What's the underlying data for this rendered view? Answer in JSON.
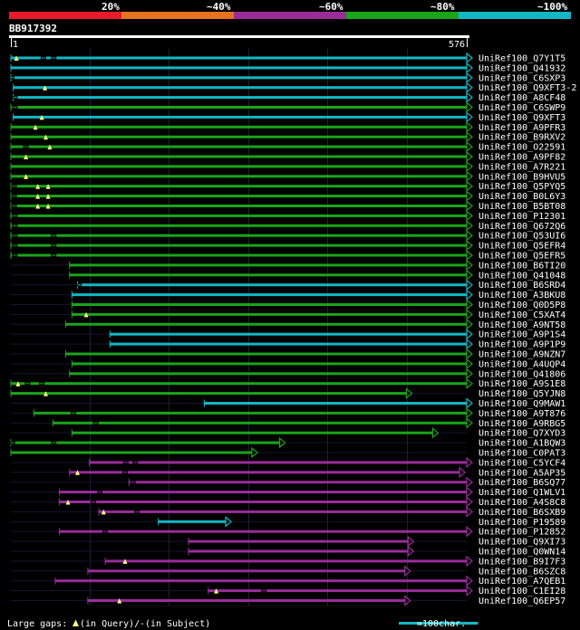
{
  "legend": {
    "labels": [
      "20%",
      "~40%",
      "~60%",
      "~80%",
      "~100%"
    ],
    "colors": [
      "#e8192c",
      "#e8731e",
      "#9a2c9a",
      "#1aa51a",
      "#11b8c4"
    ]
  },
  "query": {
    "name": "BB917392",
    "start": "1",
    "end": "576",
    "length": 576
  },
  "hits": [
    {
      "name": "UniRef100_Q7Y1T5",
      "start": 1,
      "end": 576,
      "color": "#11b8c4",
      "gaps": [
        {
          "pos": 8,
          "type": "query"
        },
        {
          "pos": 42,
          "type": "subject"
        },
        {
          "pos": 55,
          "type": "subject"
        }
      ]
    },
    {
      "name": "UniRef100_Q41932",
      "start": 1,
      "end": 576,
      "color": "#11b8c4",
      "gaps": []
    },
    {
      "name": "UniRef100_C6SXP3",
      "start": 1,
      "end": 576,
      "color": "#11b8c4",
      "gaps": [
        {
          "pos": 2,
          "type": "subject"
        }
      ]
    },
    {
      "name": "UniRef100_Q9XFT3-2",
      "start": 4,
      "end": 576,
      "color": "#11b8c4",
      "gaps": [
        {
          "pos": 44,
          "type": "query"
        }
      ]
    },
    {
      "name": "UniRef100_A8CF48",
      "start": 4,
      "end": 576,
      "color": "#11b8c4",
      "gaps": [
        {
          "pos": 6,
          "type": "subject"
        }
      ]
    },
    {
      "name": "UniRef100_C6SWP9",
      "start": 1,
      "end": 576,
      "color": "#1aa51a",
      "gaps": [
        {
          "pos": 6,
          "type": "subject"
        }
      ]
    },
    {
      "name": "UniRef100_Q9XFT3",
      "start": 4,
      "end": 576,
      "color": "#11b8c4",
      "gaps": [
        {
          "pos": 40,
          "type": "query"
        }
      ]
    },
    {
      "name": "UniRef100_A9PFR3",
      "start": 1,
      "end": 576,
      "color": "#1aa51a",
      "gaps": [
        {
          "pos": 32,
          "type": "query"
        }
      ]
    },
    {
      "name": "UniRef100_B9RXV2",
      "start": 1,
      "end": 576,
      "color": "#1aa51a",
      "gaps": [
        {
          "pos": 45,
          "type": "query"
        }
      ]
    },
    {
      "name": "UniRef100_O22591",
      "start": 1,
      "end": 576,
      "color": "#1aa51a",
      "gaps": [
        {
          "pos": 20,
          "type": "subject"
        },
        {
          "pos": 50,
          "type": "query"
        }
      ]
    },
    {
      "name": "UniRef100_A9PF82",
      "start": 1,
      "end": 576,
      "color": "#1aa51a",
      "gaps": [
        {
          "pos": 20,
          "type": "query"
        }
      ]
    },
    {
      "name": "UniRef100_A7R221",
      "start": 1,
      "end": 576,
      "color": "#1aa51a",
      "gaps": []
    },
    {
      "name": "UniRef100_B9HVU5",
      "start": 1,
      "end": 576,
      "color": "#1aa51a",
      "gaps": [
        {
          "pos": 20,
          "type": "query"
        }
      ]
    },
    {
      "name": "UniRef100_Q5PYQ5",
      "start": 1,
      "end": 576,
      "color": "#1aa51a",
      "gaps": [
        {
          "pos": 5,
          "type": "subject"
        },
        {
          "pos": 35,
          "type": "query"
        },
        {
          "pos": 48,
          "type": "query"
        }
      ]
    },
    {
      "name": "UniRef100_B0L6Y3",
      "start": 1,
      "end": 576,
      "color": "#1aa51a",
      "gaps": [
        {
          "pos": 5,
          "type": "subject"
        },
        {
          "pos": 35,
          "type": "query"
        },
        {
          "pos": 48,
          "type": "query"
        }
      ]
    },
    {
      "name": "UniRef100_B5BT08",
      "start": 1,
      "end": 576,
      "color": "#1aa51a",
      "gaps": [
        {
          "pos": 5,
          "type": "subject"
        },
        {
          "pos": 35,
          "type": "query"
        },
        {
          "pos": 48,
          "type": "query"
        }
      ]
    },
    {
      "name": "UniRef100_P12301",
      "start": 1,
      "end": 576,
      "color": "#1aa51a",
      "gaps": [
        {
          "pos": 6,
          "type": "subject"
        }
      ]
    },
    {
      "name": "UniRef100_Q672Q6",
      "start": 1,
      "end": 576,
      "color": "#1aa51a",
      "gaps": [
        {
          "pos": 6,
          "type": "subject"
        }
      ]
    },
    {
      "name": "UniRef100_Q53UI6",
      "start": 1,
      "end": 576,
      "color": "#1aa51a",
      "gaps": [
        {
          "pos": 6,
          "type": "subject"
        },
        {
          "pos": 55,
          "type": "subject"
        }
      ]
    },
    {
      "name": "UniRef100_Q5EFR4",
      "start": 1,
      "end": 576,
      "color": "#1aa51a",
      "gaps": [
        {
          "pos": 6,
          "type": "subject"
        },
        {
          "pos": 55,
          "type": "subject"
        }
      ]
    },
    {
      "name": "UniRef100_Q5EFR5",
      "start": 1,
      "end": 576,
      "color": "#1aa51a",
      "gaps": [
        {
          "pos": 6,
          "type": "subject"
        },
        {
          "pos": 55,
          "type": "subject"
        }
      ]
    },
    {
      "name": "UniRef100_B6TI20",
      "start": 75,
      "end": 576,
      "color": "#1aa51a",
      "gaps": []
    },
    {
      "name": "UniRef100_Q41048",
      "start": 75,
      "end": 576,
      "color": "#1aa51a",
      "gaps": []
    },
    {
      "name": "UniRef100_B6SRD4",
      "start": 85,
      "end": 576,
      "color": "#11b8c4",
      "gaps": [
        {
          "pos": 87,
          "type": "subject"
        }
      ]
    },
    {
      "name": "UniRef100_A3BKU8",
      "start": 78,
      "end": 576,
      "color": "#11b8c4",
      "gaps": []
    },
    {
      "name": "UniRef100_Q0D5P8",
      "start": 78,
      "end": 576,
      "color": "#1aa51a",
      "gaps": []
    },
    {
      "name": "UniRef100_C5XAT4",
      "start": 78,
      "end": 576,
      "color": "#1aa51a",
      "gaps": [
        {
          "pos": 96,
          "type": "query"
        }
      ]
    },
    {
      "name": "UniRef100_A9NT58",
      "start": 70,
      "end": 576,
      "color": "#1aa51a",
      "gaps": []
    },
    {
      "name": "UniRef100_A9P1S4",
      "start": 126,
      "end": 576,
      "color": "#11b8c4",
      "gaps": []
    },
    {
      "name": "UniRef100_A9P1P9",
      "start": 126,
      "end": 576,
      "color": "#11b8c4",
      "gaps": []
    },
    {
      "name": "UniRef100_A9NZN7",
      "start": 70,
      "end": 576,
      "color": "#1aa51a",
      "gaps": []
    },
    {
      "name": "UniRef100_A4UQP4",
      "start": 78,
      "end": 576,
      "color": "#1aa51a",
      "gaps": []
    },
    {
      "name": "UniRef100_Q41806",
      "start": 75,
      "end": 576,
      "color": "#1aa51a",
      "gaps": []
    },
    {
      "name": "UniRef100_A9S1E8",
      "start": 1,
      "end": 576,
      "color": "#1aa51a",
      "gaps": [
        {
          "pos": 10,
          "type": "query"
        },
        {
          "pos": 22,
          "type": "subject"
        },
        {
          "pos": 40,
          "type": "subject"
        }
      ]
    },
    {
      "name": "UniRef100_Q5YJN8",
      "start": 1,
      "end": 500,
      "color": "#1aa51a",
      "gaps": [
        {
          "pos": 45,
          "type": "query"
        }
      ]
    },
    {
      "name": "UniRef100_Q9MAW1",
      "start": 245,
      "end": 576,
      "color": "#11b8c4",
      "gaps": []
    },
    {
      "name": "UniRef100_A9T876",
      "start": 30,
      "end": 576,
      "color": "#1aa51a",
      "gaps": [
        {
          "pos": 80,
          "type": "subject"
        }
      ]
    },
    {
      "name": "UniRef100_A9RBG5",
      "start": 54,
      "end": 576,
      "color": "#1aa51a",
      "gaps": [
        {
          "pos": 108,
          "type": "subject"
        }
      ]
    },
    {
      "name": "UniRef100_Q7XYD3",
      "start": 78,
      "end": 533,
      "color": "#1aa51a",
      "gaps": []
    },
    {
      "name": "UniRef100_A1BQW3",
      "start": 1,
      "end": 340,
      "color": "#1aa51a",
      "gaps": [
        {
          "pos": 3,
          "type": "subject"
        },
        {
          "pos": 55,
          "type": "subject"
        }
      ]
    },
    {
      "name": "UniRef100_C0PAT3",
      "start": 1,
      "end": 305,
      "color": "#1aa51a",
      "gaps": []
    },
    {
      "name": "UniRef100_C5YCF4",
      "start": 100,
      "end": 576,
      "color": "#9a2c9a",
      "gaps": [
        {
          "pos": 146,
          "type": "subject"
        },
        {
          "pos": 158,
          "type": "subject"
        }
      ]
    },
    {
      "name": "UniRef100_A5AP35",
      "start": 75,
      "end": 567,
      "color": "#9a2c9a",
      "gaps": [
        {
          "pos": 85,
          "type": "query"
        },
        {
          "pos": 145,
          "type": "subject"
        }
      ]
    },
    {
      "name": "UniRef100_B6SQ77",
      "start": 150,
      "end": 576,
      "color": "#9a2c9a",
      "gaps": [
        {
          "pos": 155,
          "type": "subject"
        }
      ]
    },
    {
      "name": "UniRef100_Q1WLV1",
      "start": 62,
      "end": 576,
      "color": "#9a2c9a",
      "gaps": [
        {
          "pos": 113,
          "type": "subject"
        }
      ]
    },
    {
      "name": "UniRef100_A4S8C8",
      "start": 62,
      "end": 576,
      "color": "#9a2c9a",
      "gaps": [
        {
          "pos": 73,
          "type": "query"
        },
        {
          "pos": 105,
          "type": "subject"
        }
      ]
    },
    {
      "name": "UniRef100_B6SXB9",
      "start": 112,
      "end": 576,
      "color": "#9a2c9a",
      "gaps": [
        {
          "pos": 118,
          "type": "query"
        },
        {
          "pos": 160,
          "type": "subject"
        }
      ]
    },
    {
      "name": "UniRef100_P19589",
      "start": 187,
      "end": 272,
      "color": "#11b8c4",
      "gaps": []
    },
    {
      "name": "UniRef100_P12852",
      "start": 62,
      "end": 576,
      "color": "#9a2c9a",
      "gaps": [
        {
          "pos": 120,
          "type": "subject"
        }
      ]
    },
    {
      "name": "UniRef100_Q9XI73",
      "start": 225,
      "end": 502,
      "color": "#9a2c9a",
      "gaps": []
    },
    {
      "name": "UniRef100_Q0WN14",
      "start": 225,
      "end": 502,
      "color": "#9a2c9a",
      "gaps": []
    },
    {
      "name": "UniRef100_B9I7F3",
      "start": 120,
      "end": 576,
      "color": "#9a2c9a",
      "gaps": [
        {
          "pos": 145,
          "type": "query"
        }
      ]
    },
    {
      "name": "UniRef100_B6SZC8",
      "start": 98,
      "end": 498,
      "color": "#9a2c9a",
      "gaps": []
    },
    {
      "name": "UniRef100_A7QEB1",
      "start": 57,
      "end": 576,
      "color": "#9a2c9a",
      "gaps": []
    },
    {
      "name": "UniRef100_C1EI28",
      "start": 250,
      "end": 576,
      "color": "#9a2c9a",
      "gaps": [
        {
          "pos": 260,
          "type": "query"
        },
        {
          "pos": 320,
          "type": "subject"
        }
      ]
    },
    {
      "name": "UniRef100_Q6EP57",
      "start": 98,
      "end": 498,
      "color": "#9a2c9a",
      "gaps": [
        {
          "pos": 138,
          "type": "query"
        }
      ]
    }
  ],
  "footer": {
    "large_gaps_label": "Large gaps:",
    "query_gap_text": "(in Query)/",
    "subject_gap_symbol": "-",
    "subject_gap_text": " (in Subject)",
    "scale_label": "=100char.",
    "scale_chars": 100
  }
}
